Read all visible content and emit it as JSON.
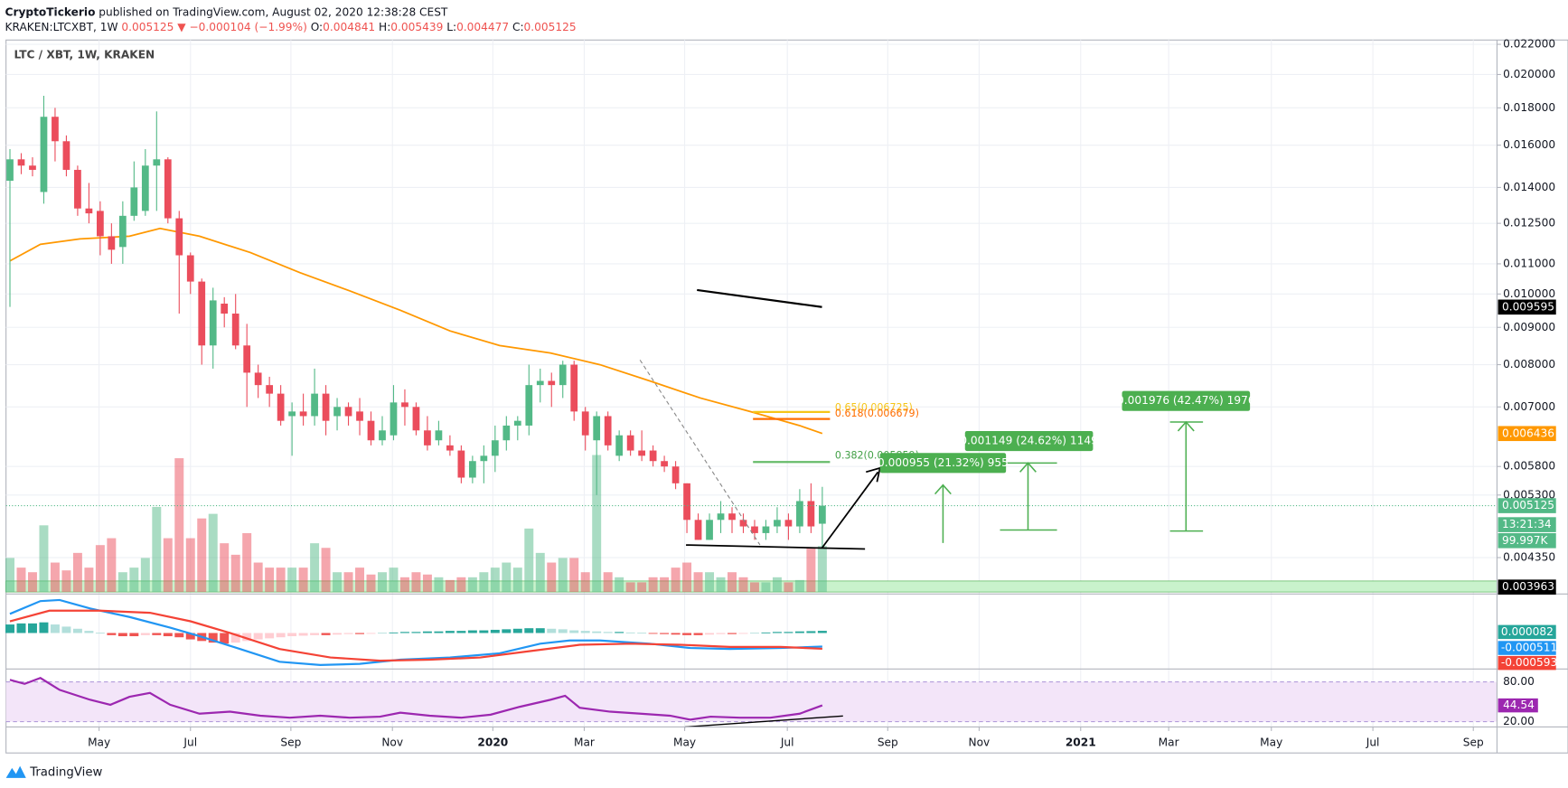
{
  "header": {
    "author": "CryptoTickerio",
    "published": "published on TradingView.com, August 02, 2020 12:38:28 CEST",
    "symbol": "KRAKEN:LTCXBT, 1W",
    "change": "▼ −0.000104 (−1.99%)",
    "o": "O:",
    "h": "H:",
    "l": "L:",
    "c": "C:"
  },
  "footer": "TradingView",
  "chart_data": {
    "type": "candlestick",
    "title": "LTC / XBT, 1W, KRAKEN",
    "log": true,
    "grid": true,
    "up_color": "#53b987",
    "down_color": "#eb4d5c",
    "xlim": [
      -0.35,
      131.8
    ],
    "xticks": [
      {
        "value": 7.9,
        "label": "May"
      },
      {
        "value": 16.0,
        "label": "Jul"
      },
      {
        "value": 24.9,
        "label": "Sep"
      },
      {
        "value": 33.9,
        "label": "Nov"
      },
      {
        "value": 42.8,
        "label": "2020"
      },
      {
        "value": 50.9,
        "label": "Mar"
      },
      {
        "value": 59.8,
        "label": "May"
      },
      {
        "value": 68.9,
        "label": "Jul"
      },
      {
        "value": 77.8,
        "label": "Sep"
      },
      {
        "value": 85.9,
        "label": "Nov"
      },
      {
        "value": 94.9,
        "label": "2021"
      },
      {
        "value": 102.7,
        "label": "Mar"
      },
      {
        "value": 111.8,
        "label": "May"
      },
      {
        "value": 120.8,
        "label": "Jul"
      },
      {
        "value": 129.7,
        "label": "Sep"
      }
    ],
    "ylim": [
      0.00389,
      0.0223
    ],
    "yticks": [
      {
        "value": 0.022,
        "label": "0.022000"
      },
      {
        "value": 0.02,
        "label": "0.020000"
      },
      {
        "value": 0.018,
        "label": "0.018000"
      },
      {
        "value": 0.016,
        "label": "0.016000"
      },
      {
        "value": 0.014,
        "label": "0.014000"
      },
      {
        "value": 0.0125,
        "label": "0.012500"
      },
      {
        "value": 0.011,
        "label": "0.011000"
      },
      {
        "value": 0.01,
        "label": "0.010000"
      },
      {
        "value": 0.009,
        "label": "0.009000"
      },
      {
        "value": 0.008,
        "label": "0.008000"
      },
      {
        "value": 0.007,
        "label": "0.007000"
      },
      {
        "value": 0.0058,
        "label": "0.005800"
      },
      {
        "value": 0.0053,
        "label": "0.005300"
      },
      {
        "value": 0.00435,
        "label": "0.004350"
      }
    ],
    "open": [
      0.0143,
      0.0153,
      0.015,
      0.0138,
      0.0175,
      0.0162,
      0.0148,
      0.0131,
      0.013,
      0.012,
      0.0116,
      0.0128,
      0.013,
      0.015,
      0.0153,
      0.0127,
      0.0113,
      0.0104,
      0.0085,
      0.0097,
      0.0094,
      0.0085,
      0.0078,
      0.0075,
      0.0073,
      0.0068,
      0.0069,
      0.0068,
      0.0073,
      0.0068,
      0.007,
      0.0069,
      0.0067,
      0.0063,
      0.0064,
      0.0071,
      0.007,
      0.0065,
      0.0063,
      0.0062,
      0.0061,
      0.0056,
      0.0059,
      0.006,
      0.0063,
      0.0066,
      0.0066,
      0.0075,
      0.0076,
      0.0075,
      0.008,
      0.0069,
      0.0063,
      0.0068,
      0.006,
      0.0064,
      0.0061,
      0.0061,
      0.0059,
      0.0058,
      0.0055,
      0.0049,
      0.0046,
      0.0049,
      0.005,
      0.0049,
      0.0048,
      0.0047,
      0.0048,
      0.0049,
      0.0048,
      0.0052,
      0.004841
    ],
    "high": [
      0.0158,
      0.0156,
      0.0154,
      0.0187,
      0.018,
      0.0165,
      0.015,
      0.0142,
      0.0134,
      0.0125,
      0.0134,
      0.0152,
      0.0158,
      0.0178,
      0.0154,
      0.013,
      0.0114,
      0.0105,
      0.0102,
      0.0099,
      0.01,
      0.0091,
      0.008,
      0.0077,
      0.0075,
      0.0071,
      0.0073,
      0.0079,
      0.0075,
      0.0072,
      0.0071,
      0.0072,
      0.0069,
      0.0068,
      0.0075,
      0.0074,
      0.0071,
      0.0068,
      0.0067,
      0.0064,
      0.0062,
      0.006,
      0.0062,
      0.0066,
      0.0068,
      0.0068,
      0.008,
      0.0079,
      0.0078,
      0.0081,
      0.0081,
      0.007,
      0.0069,
      0.0069,
      0.0065,
      0.0065,
      0.0065,
      0.0062,
      0.006,
      0.0059,
      0.0055,
      0.005,
      0.005,
      0.0052,
      0.0051,
      0.005,
      0.0049,
      0.0049,
      0.0051,
      0.005,
      0.0054,
      0.0055,
      0.005439
    ],
    "low": [
      0.0096,
      0.0146,
      0.0145,
      0.0133,
      0.0152,
      0.0145,
      0.0128,
      0.0125,
      0.0113,
      0.011,
      0.011,
      0.0126,
      0.0128,
      0.013,
      0.0125,
      0.0094,
      0.01,
      0.008,
      0.0079,
      0.009,
      0.0084,
      0.007,
      0.0072,
      0.007,
      0.0066,
      0.006,
      0.0066,
      0.0066,
      0.0064,
      0.0065,
      0.0066,
      0.0064,
      0.0062,
      0.0062,
      0.0063,
      0.0066,
      0.0064,
      0.0061,
      0.0062,
      0.006,
      0.0055,
      0.0055,
      0.0055,
      0.0057,
      0.0061,
      0.0063,
      0.0064,
      0.0071,
      0.007,
      0.0072,
      0.0067,
      0.0061,
      0.0053,
      0.0061,
      0.0059,
      0.006,
      0.0059,
      0.0058,
      0.0057,
      0.0054,
      0.0047,
      0.0046,
      0.0046,
      0.0047,
      0.0047,
      0.0047,
      0.0046,
      0.0046,
      0.0047,
      0.0046,
      0.0047,
      0.0047,
      0.004477
    ],
    "close": [
      0.0153,
      0.015,
      0.0148,
      0.0175,
      0.0162,
      0.0148,
      0.0131,
      0.0129,
      0.012,
      0.0115,
      0.0128,
      0.014,
      0.015,
      0.0153,
      0.0127,
      0.0113,
      0.0104,
      0.0085,
      0.0098,
      0.0094,
      0.0085,
      0.0078,
      0.0075,
      0.0073,
      0.0067,
      0.0069,
      0.0068,
      0.0073,
      0.0067,
      0.007,
      0.0068,
      0.0067,
      0.0063,
      0.0065,
      0.0071,
      0.007,
      0.0065,
      0.0062,
      0.0065,
      0.0061,
      0.0056,
      0.0059,
      0.006,
      0.0063,
      0.0066,
      0.0067,
      0.0075,
      0.0076,
      0.0075,
      0.008,
      0.0069,
      0.0064,
      0.0068,
      0.0062,
      0.0064,
      0.0061,
      0.006,
      0.0059,
      0.0058,
      0.0055,
      0.0049,
      0.0046,
      0.0049,
      0.005,
      0.0049,
      0.0048,
      0.0047,
      0.0048,
      0.0049,
      0.0048,
      0.0052,
      0.0048,
      0.005125
    ],
    "volume": [
      74000,
      53000,
      43000,
      145000,
      64000,
      47000,
      85000,
      53000,
      102000,
      117000,
      43000,
      53000,
      74000,
      185000,
      117000,
      291000,
      117000,
      160000,
      170000,
      106000,
      81000,
      128000,
      64000,
      53000,
      53000,
      53000,
      53000,
      106000,
      96000,
      43000,
      43000,
      53000,
      38000,
      43000,
      53000,
      32000,
      43000,
      38000,
      32000,
      26000,
      32000,
      32000,
      43000,
      53000,
      64000,
      53000,
      138000,
      85000,
      64000,
      74000,
      74000,
      43000,
      298000,
      43000,
      32000,
      21000,
      21000,
      32000,
      32000,
      53000,
      64000,
      43000,
      43000,
      32000,
      43000,
      32000,
      21000,
      21000,
      32000,
      21000,
      26000,
      96000,
      99997
    ],
    "volume_label": "99.997K",
    "countdown": "13:21:34",
    "trend_value": 0.009595,
    "support_value": 0.003963,
    "ma": {
      "color": "#ff9800",
      "x": [
        0,
        2.7,
        6.2,
        10.6,
        13.3,
        16.8,
        21.3,
        25.7,
        30.1,
        34.6,
        39.0,
        43.4,
        47.9,
        52.3,
        56.7,
        61.2,
        65.6,
        70.0,
        72
      ],
      "values": [
        0.0111,
        0.0117,
        0.0119,
        0.012,
        0.0123,
        0.012,
        0.0114,
        0.0107,
        0.0101,
        0.0095,
        0.0089,
        0.0085,
        0.0083,
        0.008,
        0.0076,
        0.0072,
        0.0069,
        0.0066,
        0.006436
      ]
    },
    "macd": {
      "line": {
        "color": "#2196f3",
        "x": [
          0,
          2.7,
          4.4,
          7.1,
          10.6,
          14.2,
          16.8,
          20.4,
          23.9,
          27.5,
          31,
          34.6,
          39,
          43.4,
          47,
          49.6,
          52.3,
          56.7,
          60.3,
          63.8,
          68.3,
          72
        ],
        "values": [
          0.00072,
          0.0012,
          0.00124,
          0.00092,
          0.0006,
          0.0002,
          -0.00012,
          -0.0006,
          -0.00108,
          -0.0012,
          -0.00116,
          -0.001,
          -0.00092,
          -0.00076,
          -0.0004,
          -0.00028,
          -0.00028,
          -0.0004,
          -0.00056,
          -0.0006,
          -0.00056,
          -0.000511
        ]
      },
      "signal": {
        "color": "#f44336",
        "x": [
          0,
          3.5,
          8,
          12.4,
          16,
          19.5,
          23.9,
          28.4,
          32.8,
          37.2,
          41.7,
          46.1,
          50.5,
          55,
          59.4,
          63.8,
          68.3,
          72
        ],
        "values": [
          0.00044,
          0.00084,
          0.00084,
          0.00076,
          0.00044,
          0,
          -0.0006,
          -0.00092,
          -0.00104,
          -0.001,
          -0.00092,
          -0.00068,
          -0.00044,
          -0.0004,
          -0.00044,
          -0.00052,
          -0.00052,
          -0.000593
        ]
      },
      "histogram": [
        0.00032,
        0.00036,
        0.00036,
        0.0004,
        0.00032,
        0.00024,
        0.00016,
        8e-05,
        1e-05,
        -8e-05,
        -0.00012,
        -0.00012,
        -8e-05,
        -8e-05,
        -0.00012,
        -0.00016,
        -0.00024,
        -0.0003,
        -0.00036,
        -0.0004,
        -0.00036,
        -0.0003,
        -0.00024,
        -0.0002,
        -0.00016,
        -0.00012,
        -0.0001,
        -8e-05,
        -8e-05,
        -6e-05,
        -4e-05,
        -4e-05,
        -2e-05,
        1e-05,
        2e-05,
        4e-05,
        4e-05,
        6e-05,
        6e-05,
        8e-05,
        8e-05,
        0.0001,
        0.0001,
        0.00012,
        0.00014,
        0.00016,
        0.00018,
        0.00018,
        0.00016,
        0.00014,
        0.0001,
        8e-05,
        6e-05,
        4e-05,
        4e-05,
        2e-05,
        1e-05,
        -2e-05,
        -4e-05,
        -6e-05,
        -8e-05,
        -8e-05,
        -6e-05,
        -4e-05,
        -4e-05,
        -2e-05,
        1e-05,
        2e-05,
        4e-05,
        4e-05,
        6e-05,
        7e-05,
        8.2e-05
      ]
    },
    "rsi": {
      "color": "#9c27b0",
      "ylim": [
        15,
        98
      ],
      "yticks": [
        {
          "value": 80,
          "label": "80.00"
        },
        {
          "value": 20,
          "label": "20.00"
        }
      ],
      "x": [
        0,
        1.3,
        2.7,
        4.4,
        7.1,
        8.9,
        10.6,
        12.4,
        14.2,
        16.8,
        19.5,
        22.2,
        24.8,
        27.5,
        30.1,
        32.8,
        34.6,
        37.2,
        40,
        42.6,
        45.2,
        47.9,
        49.2,
        50.5,
        53.2,
        55.9,
        58.5,
        60.3,
        62.1,
        64.7,
        67.4,
        70,
        72
      ],
      "values": [
        83,
        77,
        86,
        68,
        53,
        45.5,
        57.5,
        63.5,
        45.5,
        32,
        35,
        29,
        26,
        29,
        26,
        27.5,
        33.5,
        29,
        26,
        30.5,
        42.5,
        53,
        59,
        41,
        35,
        32,
        29,
        23,
        27.5,
        26,
        26,
        32,
        44.54
      ]
    },
    "annotations": {
      "fib_65": "0.65(0.006725)",
      "fib_618": "0.618(0.006679)",
      "fib_382": "0.382(0.005859)",
      "range_1": "0.000955 (21.32%) 955",
      "range_2": "0.001149 (24.62%) 1149",
      "range_3": "0.001976 (42.47%) 1976"
    }
  }
}
